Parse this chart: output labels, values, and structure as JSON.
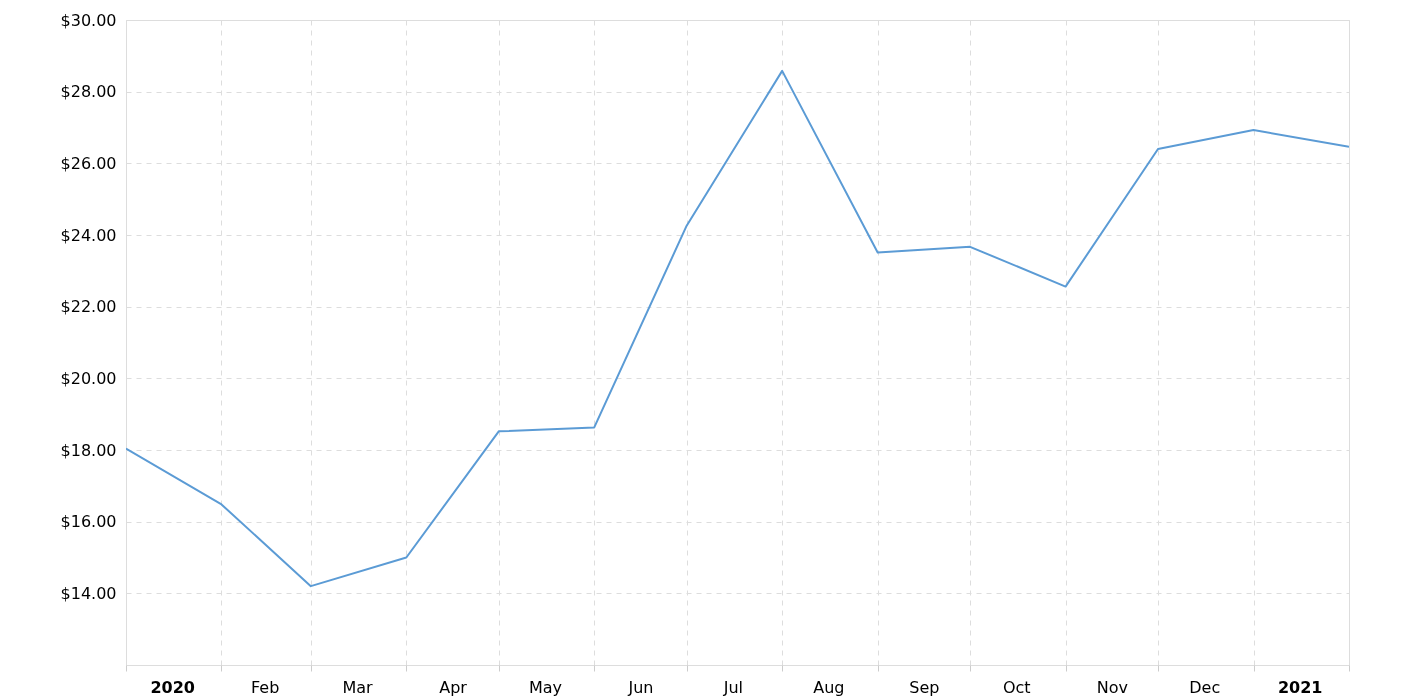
{
  "chart_data": {
    "type": "line",
    "x": [
      "2020-01-01",
      "2020-02-01",
      "2020-03-01",
      "2020-04-01",
      "2020-05-01",
      "2020-06-01",
      "2020-07-01",
      "2020-08-01",
      "2020-09-01",
      "2020-10-01",
      "2020-11-01",
      "2020-12-01",
      "2021-01-01",
      "2021-02-01"
    ],
    "series": [
      {
        "color": "#5b9bd5",
        "values": [
          18.04,
          16.48,
          14.2,
          15.0,
          18.52,
          18.63,
          24.26,
          28.58,
          23.51,
          23.67,
          22.56,
          26.4,
          26.93,
          26.46
        ]
      }
    ],
    "xlim": [
      "2020-01-01",
      "2021-02-01"
    ],
    "xticks": [
      {
        "value": "2020-01-01",
        "label": null
      },
      {
        "value": "2020-02-01",
        "label": null
      },
      {
        "value": "2020-03-01",
        "label": null
      },
      {
        "value": "2020-04-01",
        "label": null
      },
      {
        "value": "2020-05-01",
        "label": null
      },
      {
        "value": "2020-06-01",
        "label": null
      },
      {
        "value": "2020-07-01",
        "label": null
      },
      {
        "value": "2020-08-01",
        "label": null
      },
      {
        "value": "2020-09-01",
        "label": null
      },
      {
        "value": "2020-10-01",
        "label": null
      },
      {
        "value": "2020-11-01",
        "label": null
      },
      {
        "value": "2020-12-01",
        "label": null
      },
      {
        "value": "2021-01-01",
        "label": null
      },
      {
        "value": "2021-02-01",
        "label": null
      },
      {
        "value": "2020-01-16",
        "label": "2020"
      },
      {
        "value": "2020-02-15",
        "label": "Feb"
      },
      {
        "value": "2020-03-16",
        "label": "Mar"
      },
      {
        "value": "2020-04-16",
        "label": "Apr"
      },
      {
        "value": "2020-05-16",
        "label": "May"
      },
      {
        "value": "2020-06-16",
        "label": "Jun"
      },
      {
        "value": "2020-07-16",
        "label": "Jul"
      },
      {
        "value": "2020-08-16",
        "label": "Aug"
      },
      {
        "value": "2020-09-16",
        "label": "Sep"
      },
      {
        "value": "2020-10-16",
        "label": "Oct"
      },
      {
        "value": "2020-11-16",
        "label": "Nov"
      },
      {
        "value": "2020-12-16",
        "label": "Dec"
      },
      {
        "value": "2021-01-16",
        "label": "2021"
      }
    ],
    "ylim": [
      12,
      30
    ],
    "yticks": [
      {
        "value": 14,
        "label": "$14.00"
      },
      {
        "value": 16,
        "label": "$16.00"
      },
      {
        "value": 18,
        "label": "$18.00"
      },
      {
        "value": 20,
        "label": "$20.00"
      },
      {
        "value": 22,
        "label": "$22.00"
      },
      {
        "value": 24,
        "label": "$24.00"
      },
      {
        "value": 26,
        "label": "$26.00"
      },
      {
        "value": 28,
        "label": "$28.00"
      },
      {
        "value": 30,
        "label": "$30.00"
      }
    ],
    "grid": true,
    "marker": "none",
    "line_style": "solid"
  }
}
